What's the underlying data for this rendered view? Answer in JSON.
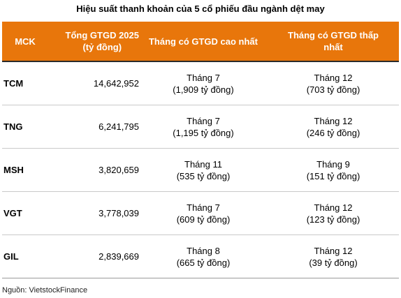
{
  "title": "Hiệu suất thanh khoản của 5 cổ phiếu đầu ngành dệt may",
  "header": {
    "col_mck": "MCK",
    "col_total_line1": "Tổng GTGD 2025",
    "col_total_line2": "(tỷ đồng)",
    "col_highest": "Tháng có GTGD cao nhất",
    "col_lowest_line1": "Tháng có GTGD thấp",
    "col_lowest_line2": "nhất"
  },
  "rows": [
    {
      "mck": "TCM",
      "total": "14,642,952",
      "high_month": "Tháng 7",
      "high_value": "(1,909 tỷ đồng)",
      "low_month": "Tháng 12",
      "low_value": "(703 tỷ đồng)"
    },
    {
      "mck": "TNG",
      "total": "6,241,795",
      "high_month": "Tháng 7",
      "high_value": "(1,195 tỷ đồng)",
      "low_month": "Tháng 12",
      "low_value": "(246 tỷ đồng)"
    },
    {
      "mck": "MSH",
      "total": "3,820,659",
      "high_month": "Tháng 11",
      "high_value": "(535 tỷ đồng)",
      "low_month": "Tháng 9",
      "low_value": "(151 tỷ đồng)"
    },
    {
      "mck": "VGT",
      "total": "3,778,039",
      "high_month": "Tháng 7",
      "high_value": "(609 tỷ đồng)",
      "low_month": "Tháng 12",
      "low_value": "(123 tỷ đồng)"
    },
    {
      "mck": "GIL",
      "total": "2,839,669",
      "high_month": "Tháng 8",
      "high_value": "(665 tỷ đồng)",
      "low_month": "Tháng 12",
      "low_value": "(39 tỷ đồng)"
    }
  ],
  "source": "Nguồn: VietstockFinance",
  "colors": {
    "header_bg": "#e8760b",
    "header_text": "#ffffff"
  }
}
